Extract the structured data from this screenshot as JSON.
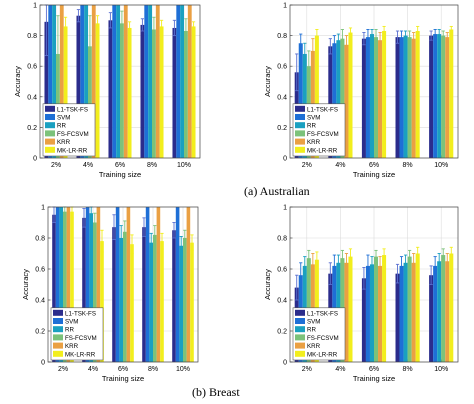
{
  "captions": {
    "a": "(a) Australian",
    "b": "(b) Breast"
  },
  "palette": [
    "#2b2c8c",
    "#1e6fd6",
    "#1aa0c0",
    "#7cc27a",
    "#eaa043",
    "#f2ee1d"
  ],
  "chart_data": [
    {
      "type": "bar",
      "panel": "Australian-left",
      "categories": [
        "2%",
        "4%",
        "6%",
        "8%",
        "10%"
      ],
      "xlabel": "Training size",
      "ylabel": "Accuracy",
      "ylim": [
        0,
        1
      ],
      "yticks": [
        "0",
        "0.2",
        "0.4",
        "0.6",
        "0.8",
        "1"
      ],
      "grid": true,
      "legend": "bottom-left",
      "series": [
        {
          "name": "L1-TSK-FS",
          "values": [
            0.89,
            0.93,
            0.9,
            0.87,
            0.85
          ],
          "err": [
            0.22,
            0.04,
            0.05,
            0.04,
            0.05
          ]
        },
        {
          "name": "SVM",
          "values": [
            1,
            1,
            1,
            1,
            1
          ],
          "err": [
            0,
            0,
            0,
            0,
            0
          ]
        },
        {
          "name": "RR",
          "values": [
            1,
            1,
            1,
            1,
            1
          ],
          "err": [
            0,
            0,
            0,
            0,
            0
          ]
        },
        {
          "name": "FS-FCSVM",
          "values": [
            0.68,
            0.73,
            0.88,
            0.84,
            0.83
          ],
          "err": [
            0.25,
            0.2,
            0.08,
            0.08,
            0.08
          ]
        },
        {
          "name": "KRR",
          "values": [
            1,
            1,
            1,
            1,
            1
          ],
          "err": [
            0,
            0,
            0,
            0,
            0
          ]
        },
        {
          "name": "MK-LR-RR",
          "values": [
            0.86,
            0.88,
            0.85,
            0.86,
            0.86
          ],
          "err": [
            0.06,
            0.05,
            0.04,
            0.04,
            0.03
          ]
        }
      ]
    },
    {
      "type": "bar",
      "panel": "Australian-right",
      "categories": [
        "2%",
        "4%",
        "6%",
        "8%",
        "10%"
      ],
      "xlabel": "Training size",
      "ylabel": "Accuracy",
      "ylim": [
        0,
        1
      ],
      "yticks": [
        "0",
        "0.2",
        "0.4",
        "0.6",
        "0.8",
        "1"
      ],
      "grid": true,
      "legend": "bottom-left",
      "series": [
        {
          "name": "L1-TSK-FS",
          "values": [
            0.56,
            0.73,
            0.78,
            0.79,
            0.8
          ],
          "err": [
            0.12,
            0.05,
            0.04,
            0.04,
            0.03
          ]
        },
        {
          "name": "SVM",
          "values": [
            0.75,
            0.75,
            0.79,
            0.79,
            0.81
          ],
          "err": [
            0.06,
            0.05,
            0.05,
            0.04,
            0.03
          ]
        },
        {
          "name": "RR",
          "values": [
            0.68,
            0.77,
            0.81,
            0.8,
            0.81
          ],
          "err": [
            0.07,
            0.04,
            0.03,
            0.03,
            0.03
          ]
        },
        {
          "name": "FS-FCSVM",
          "values": [
            0.6,
            0.78,
            0.79,
            0.79,
            0.8
          ],
          "err": [
            0.1,
            0.06,
            0.05,
            0.04,
            0.03
          ]
        },
        {
          "name": "KRR",
          "values": [
            0.7,
            0.74,
            0.77,
            0.78,
            0.79
          ],
          "err": [
            0.08,
            0.06,
            0.05,
            0.04,
            0.03
          ]
        },
        {
          "name": "MK-LR-RR",
          "values": [
            0.8,
            0.82,
            0.83,
            0.83,
            0.84
          ],
          "err": [
            0.04,
            0.03,
            0.03,
            0.03,
            0.02
          ]
        }
      ]
    },
    {
      "type": "bar",
      "panel": "Breast-left",
      "categories": [
        "2%",
        "4%",
        "6%",
        "8%",
        "10%"
      ],
      "xlabel": "Training size",
      "ylabel": "Accuracy",
      "ylim": [
        0,
        1
      ],
      "yticks": [
        "0",
        "0.2",
        "0.4",
        "0.6",
        "0.8",
        "1"
      ],
      "grid": true,
      "legend": "bottom-left",
      "series": [
        {
          "name": "L1-TSK-FS",
          "values": [
            0.95,
            0.93,
            0.87,
            0.87,
            0.85
          ],
          "err": [
            0.05,
            0.06,
            0.08,
            0.06,
            0.05
          ]
        },
        {
          "name": "SVM",
          "values": [
            1,
            1,
            1,
            1,
            1
          ],
          "err": [
            0,
            0,
            0,
            0,
            0
          ]
        },
        {
          "name": "RR",
          "values": [
            1,
            0.96,
            0.8,
            0.77,
            0.75
          ],
          "err": [
            0,
            0.05,
            0.08,
            0.06,
            0.06
          ]
        },
        {
          "name": "FS-FCSVM",
          "values": [
            0.97,
            0.9,
            0.84,
            0.82,
            0.8
          ],
          "err": [
            0.04,
            0.06,
            0.07,
            0.06,
            0.05
          ]
        },
        {
          "name": "KRR",
          "values": [
            1,
            1,
            1,
            1,
            1
          ],
          "err": [
            0,
            0,
            0,
            0,
            0
          ]
        },
        {
          "name": "MK-LR-RR",
          "values": [
            0.97,
            0.78,
            0.76,
            0.78,
            0.77
          ],
          "err": [
            0.04,
            0.07,
            0.06,
            0.05,
            0.05
          ]
        }
      ]
    },
    {
      "type": "bar",
      "panel": "Breast-right",
      "categories": [
        "2%",
        "4%",
        "6%",
        "8%",
        "10%"
      ],
      "xlabel": "Training size",
      "ylabel": "Accuracy",
      "ylim": [
        0,
        1
      ],
      "yticks": [
        "0",
        "0.2",
        "0.4",
        "0.6",
        "0.8",
        "1"
      ],
      "grid": true,
      "legend": "bottom-left",
      "series": [
        {
          "name": "L1-TSK-FS",
          "values": [
            0.48,
            0.57,
            0.54,
            0.57,
            0.56
          ],
          "err": [
            0.08,
            0.07,
            0.07,
            0.06,
            0.06
          ]
        },
        {
          "name": "SVM",
          "values": [
            0.56,
            0.62,
            0.62,
            0.62,
            0.62
          ],
          "err": [
            0.08,
            0.07,
            0.07,
            0.06,
            0.06
          ]
        },
        {
          "name": "RR",
          "values": [
            0.62,
            0.64,
            0.63,
            0.64,
            0.65
          ],
          "err": [
            0.06,
            0.05,
            0.05,
            0.05,
            0.05
          ]
        },
        {
          "name": "FS-FCSVM",
          "values": [
            0.67,
            0.67,
            0.68,
            0.68,
            0.69
          ],
          "err": [
            0.05,
            0.05,
            0.04,
            0.04,
            0.04
          ]
        },
        {
          "name": "KRR",
          "values": [
            0.63,
            0.64,
            0.62,
            0.64,
            0.65
          ],
          "err": [
            0.07,
            0.06,
            0.06,
            0.06,
            0.05
          ]
        },
        {
          "name": "MK-LR-RR",
          "values": [
            0.66,
            0.68,
            0.69,
            0.7,
            0.7
          ],
          "err": [
            0.05,
            0.05,
            0.04,
            0.04,
            0.04
          ]
        }
      ]
    }
  ]
}
